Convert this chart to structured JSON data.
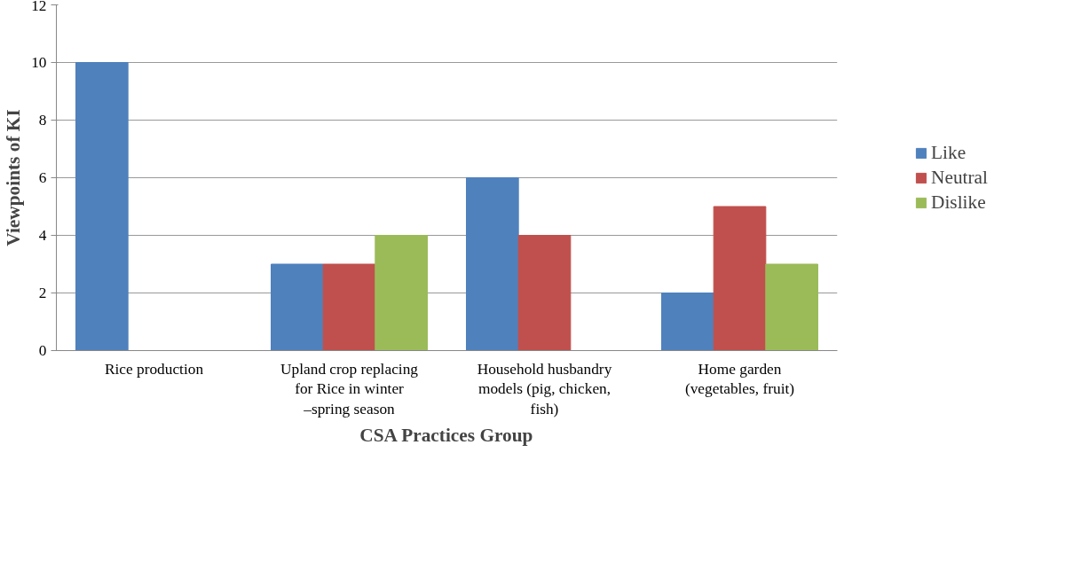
{
  "chart_data": {
    "type": "bar",
    "xlabel": "CSA Practices Group",
    "ylabel": "Viewpoints of KI",
    "categories": [
      "Rice production",
      "Upland crop replacing for Rice in winter –spring season",
      "Household husbandry models (pig, chicken, fish)",
      "Home garden (vegetables, fruit)"
    ],
    "series": [
      {
        "name": "Like",
        "color": "#4f81bd",
        "values": [
          10,
          3,
          6,
          2
        ]
      },
      {
        "name": "Neutral",
        "color": "#c0504d",
        "values": [
          null,
          3,
          4,
          5
        ]
      },
      {
        "name": "Dislike",
        "color": "#9bbb59",
        "values": [
          null,
          4,
          null,
          3
        ]
      }
    ],
    "ylim": [
      0,
      12
    ],
    "yticks": [
      0,
      2,
      4,
      6,
      8,
      10,
      12
    ],
    "grid": "y",
    "legend": "right"
  }
}
